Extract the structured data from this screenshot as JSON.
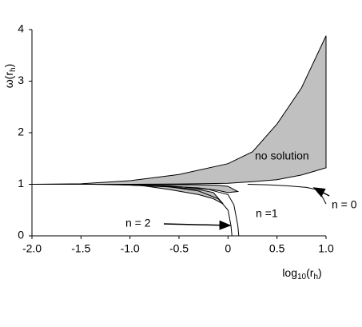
{
  "chart_data": {
    "type": "line",
    "xlabel": [
      "log",
      "10",
      "(r",
      "h",
      ")"
    ],
    "ylabel": [
      "ω(r",
      "h",
      ")"
    ],
    "xlim": [
      -2,
      1
    ],
    "ylim": [
      0,
      4
    ],
    "xticks": [
      {
        "value": -2,
        "label": "-2.0"
      },
      {
        "value": -1.5,
        "label": "-1.5"
      },
      {
        "value": -1,
        "label": "-1.0"
      },
      {
        "value": -0.5,
        "label": "-0.5"
      },
      0,
      0.5,
      {
        "value": 1,
        "label": "1.0"
      }
    ],
    "yticks": [
      0,
      1,
      2,
      3,
      4
    ],
    "bands": [
      {
        "color": "#c0c0c0",
        "x": [
          -2,
          -1.5,
          -1,
          -0.5,
          0,
          0.25,
          0.5,
          0.75,
          1
        ],
        "high": [
          1,
          1.01,
          1.07,
          1.19,
          1.4,
          1.63,
          2.17,
          2.87,
          3.88
        ],
        "low": [
          1,
          1,
          1,
          1.005,
          1.02,
          1.05,
          1.09,
          1.18,
          1.32
        ]
      },
      {
        "color": "#c0c0c0",
        "x": [
          -1.4,
          -1,
          -0.6,
          -0.3,
          -0.1,
          0,
          0.1
        ],
        "high": [
          1,
          1,
          0.995,
          0.99,
          0.98,
          0.96,
          0.86
        ],
        "low": [
          1,
          0.985,
          0.96,
          0.93,
          0.88,
          0.84,
          0.86
        ]
      },
      {
        "color": "#c0c0c0",
        "x": [
          -0.9,
          -0.6,
          -0.3,
          -0.15,
          -0.05
        ],
        "high": [
          0.98,
          0.95,
          0.9,
          0.84,
          0.62
        ],
        "low": [
          0.98,
          0.9,
          0.8,
          0.72,
          0.62
        ]
      }
    ],
    "series": [
      {
        "color": "#000000",
        "x": [
          -1.2,
          -0.6,
          -0.3,
          -0.1,
          0,
          0.03,
          0.04
        ],
        "values": [
          1,
          0.95,
          0.87,
          0.72,
          0.5,
          0.2,
          0
        ]
      },
      {
        "color": "#000000",
        "x": [
          -1.2,
          -0.6,
          -0.2,
          0,
          0.06,
          0.1,
          0.11
        ],
        "values": [
          1,
          0.97,
          0.9,
          0.8,
          0.6,
          0.2,
          0
        ]
      },
      {
        "color": "#000000",
        "x": [
          0.2,
          0.4,
          0.6,
          0.8,
          0.9,
          0.95,
          1
        ],
        "values": [
          1,
          0.99,
          0.97,
          0.94,
          0.9,
          0.8,
          0.62
        ]
      }
    ],
    "annotations": [
      "no solution",
      "n =1",
      "n = 2",
      "n = 0"
    ]
  }
}
